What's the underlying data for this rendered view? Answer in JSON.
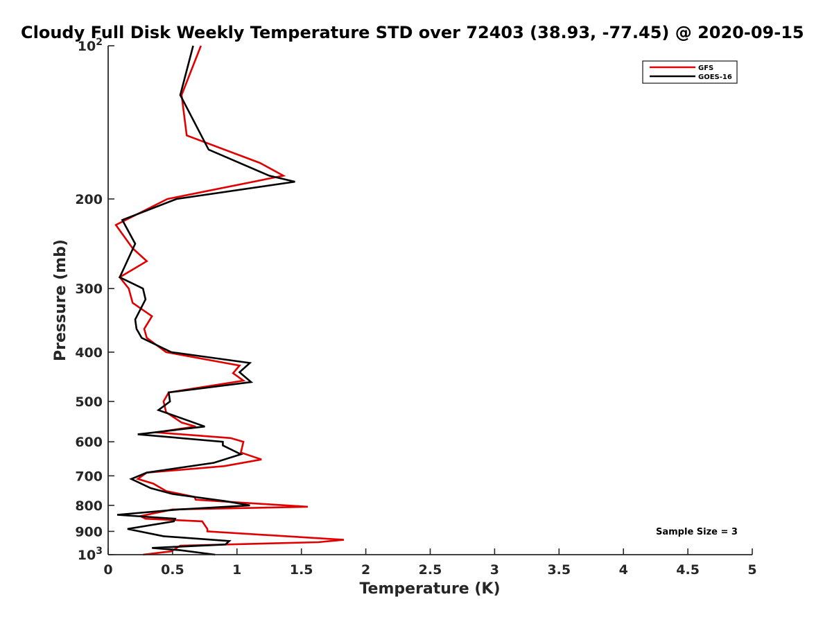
{
  "chart_data": {
    "type": "line",
    "title": "Cloudy Full Disk Weekly Temperature STD over 72403 (38.93, -77.45) @ 2020-09-15",
    "xlabel": "Temperature (K)",
    "ylabel": "Pressure (mb)",
    "xlim": [
      0,
      5
    ],
    "ylim": [
      100,
      1000
    ],
    "y_scale": "log",
    "y_reversed": true,
    "x_ticks": [
      "0",
      "0.5",
      "1",
      "1.5",
      "2",
      "2.5",
      "3",
      "3.5",
      "4",
      "4.5",
      "5"
    ],
    "y_ticks": [
      {
        "value": 100,
        "base": "10",
        "exp": "2"
      },
      {
        "value": 200,
        "label": "200"
      },
      {
        "value": 300,
        "label": "300"
      },
      {
        "value": 400,
        "label": "400"
      },
      {
        "value": 500,
        "label": "500"
      },
      {
        "value": 600,
        "label": "600"
      },
      {
        "value": 700,
        "label": "700"
      },
      {
        "value": 800,
        "label": "800"
      },
      {
        "value": 900,
        "label": "900"
      },
      {
        "value": 1000,
        "base": "10",
        "exp": "3"
      }
    ],
    "grid": false,
    "legend_position": "top-right",
    "annotation": "Sample Size = 3",
    "series": [
      {
        "name": "GFS",
        "color": "#e00000",
        "points": [
          [
            0.72,
            100
          ],
          [
            0.57,
            125
          ],
          [
            0.61,
            150
          ],
          [
            1.18,
            170
          ],
          [
            1.36,
            180
          ],
          [
            0.46,
            200
          ],
          [
            0.06,
            225
          ],
          [
            0.19,
            250
          ],
          [
            0.3,
            265
          ],
          [
            0.09,
            285
          ],
          [
            0.16,
            300
          ],
          [
            0.19,
            320
          ],
          [
            0.34,
            340
          ],
          [
            0.28,
            360
          ],
          [
            0.3,
            375
          ],
          [
            0.45,
            400
          ],
          [
            1.02,
            425
          ],
          [
            0.97,
            440
          ],
          [
            1.05,
            455
          ],
          [
            0.47,
            480
          ],
          [
            0.43,
            500
          ],
          [
            0.45,
            525
          ],
          [
            0.57,
            550
          ],
          [
            0.68,
            560
          ],
          [
            0.37,
            575
          ],
          [
            0.95,
            590
          ],
          [
            1.05,
            600
          ],
          [
            1.03,
            630
          ],
          [
            1.19,
            650
          ],
          [
            0.9,
            670
          ],
          [
            0.3,
            690
          ],
          [
            0.23,
            710
          ],
          [
            0.35,
            725
          ],
          [
            0.45,
            750
          ],
          [
            0.67,
            770
          ],
          [
            0.68,
            780
          ],
          [
            1.55,
            805
          ],
          [
            0.5,
            815
          ],
          [
            0.25,
            840
          ],
          [
            0.29,
            850
          ],
          [
            0.73,
            860
          ],
          [
            0.77,
            890
          ],
          [
            0.77,
            900
          ],
          [
            1.83,
            935
          ],
          [
            1.63,
            945
          ],
          [
            0.56,
            960
          ],
          [
            0.49,
            985
          ],
          [
            0.27,
            1000
          ]
        ]
      },
      {
        "name": "GOES-16",
        "color": "#000000",
        "points": [
          [
            0.66,
            100
          ],
          [
            0.56,
            125
          ],
          [
            0.78,
            160
          ],
          [
            1.25,
            180
          ],
          [
            1.45,
            185
          ],
          [
            0.53,
            200
          ],
          [
            0.11,
            220
          ],
          [
            0.21,
            245
          ],
          [
            0.09,
            285
          ],
          [
            0.27,
            300
          ],
          [
            0.29,
            315
          ],
          [
            0.21,
            345
          ],
          [
            0.22,
            360
          ],
          [
            0.26,
            375
          ],
          [
            0.49,
            400
          ],
          [
            1.1,
            420
          ],
          [
            1.02,
            438
          ],
          [
            1.11,
            458
          ],
          [
            0.47,
            480
          ],
          [
            0.48,
            500
          ],
          [
            0.39,
            520
          ],
          [
            0.75,
            560
          ],
          [
            0.23,
            580
          ],
          [
            0.89,
            600
          ],
          [
            0.89,
            610
          ],
          [
            1.03,
            635
          ],
          [
            0.82,
            660
          ],
          [
            0.3,
            690
          ],
          [
            0.18,
            710
          ],
          [
            0.33,
            740
          ],
          [
            0.5,
            760
          ],
          [
            0.91,
            785
          ],
          [
            1.1,
            800
          ],
          [
            0.55,
            815
          ],
          [
            0.07,
            835
          ],
          [
            0.52,
            850
          ],
          [
            0.51,
            860
          ],
          [
            0.15,
            890
          ],
          [
            0.43,
            920
          ],
          [
            0.94,
            940
          ],
          [
            0.91,
            955
          ],
          [
            0.34,
            970
          ],
          [
            0.56,
            980
          ],
          [
            0.83,
            1000
          ]
        ]
      }
    ]
  }
}
